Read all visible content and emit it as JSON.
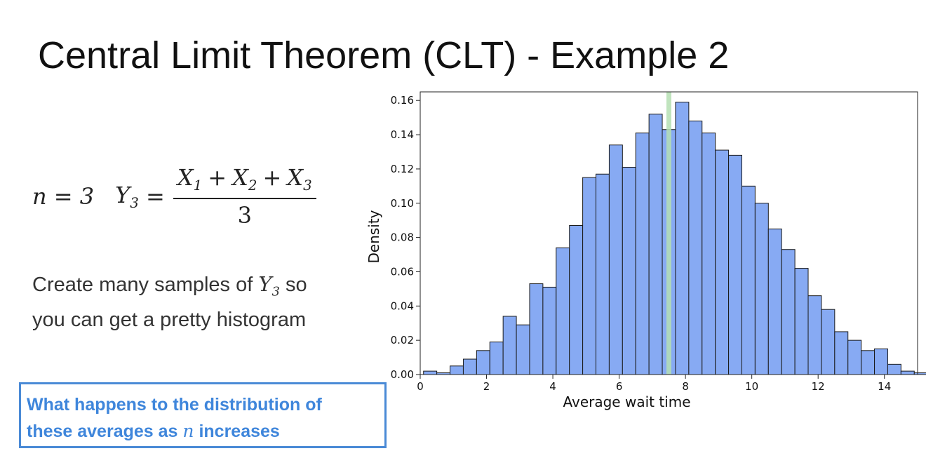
{
  "slide": {
    "title": "Central Limit Theorem (CLT) - Example 2",
    "formula": {
      "n_label": "n = 3",
      "lhs": "Y",
      "lhs_sub": "3",
      "numerator": [
        {
          "var": "X",
          "sub": "1"
        },
        {
          "op": "+"
        },
        {
          "var": "X",
          "sub": "2"
        },
        {
          "op": "+"
        },
        {
          "var": "X",
          "sub": "3"
        }
      ],
      "denominator": "3"
    },
    "description": {
      "line1_before": "Create many samples of ",
      "var": "Y",
      "var_sub": "3",
      "line1_after": " so",
      "line2": "you can get a pretty histogram"
    },
    "callout": {
      "line1": "What happens to the distribution of",
      "line2_before": "these averages as ",
      "var": "n",
      "line2_after": " increases"
    }
  },
  "chart_data": {
    "type": "bar",
    "bar_style": "histogram",
    "xlabel": "Average wait time",
    "ylabel": "Density",
    "xlim": [
      0,
      15
    ],
    "ylim": [
      0,
      0.165
    ],
    "xticks": [
      0,
      2,
      4,
      6,
      8,
      10,
      12,
      14
    ],
    "yticks": [
      0.0,
      0.02,
      0.04,
      0.06,
      0.08,
      0.1,
      0.12,
      0.14,
      0.16
    ],
    "bin_width": 0.4,
    "bin_start": 0.1,
    "values": [
      0.002,
      0.001,
      0.005,
      0.009,
      0.014,
      0.019,
      0.034,
      0.029,
      0.053,
      0.051,
      0.074,
      0.087,
      0.115,
      0.117,
      0.134,
      0.121,
      0.141,
      0.152,
      0.143,
      0.159,
      0.148,
      0.141,
      0.131,
      0.128,
      0.11,
      0.1,
      0.085,
      0.073,
      0.062,
      0.046,
      0.038,
      0.025,
      0.02,
      0.014,
      0.015,
      0.006,
      0.002,
      0.001
    ],
    "bar_color": "#87aaf3",
    "edge_color": "#1a1a1a",
    "mean_line_x": 7.5,
    "mean_line_color": "#b5dfb3",
    "grid": false,
    "legend": "none"
  }
}
